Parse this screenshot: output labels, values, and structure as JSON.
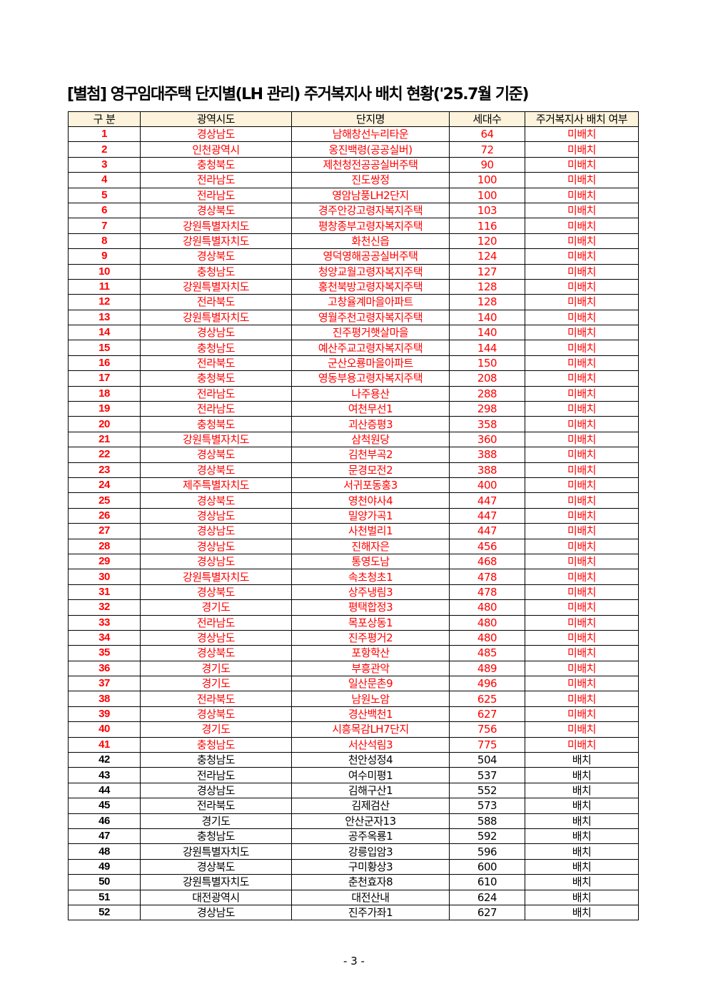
{
  "title": "[별첨] 영구임대주택 단지별(LH 관리) 주거복지사 배치 현황('25.7월 기준)",
  "colors": {
    "undeployed": "#ff0000",
    "deployed": "#000000",
    "header_bg": "#fdf3dc"
  },
  "table": {
    "headers": [
      "구 분",
      "광역시도",
      "단지명",
      "세대수",
      "주거복지사 배치 여부"
    ],
    "rows": [
      [
        "1",
        "경상남도",
        "남해창선누리타운",
        "64",
        "미배치"
      ],
      [
        "2",
        "인천광역시",
        "옹진백령(공공실버)",
        "72",
        "미배치"
      ],
      [
        "3",
        "충청북도",
        "제천청전공공실버주택",
        "90",
        "미배치"
      ],
      [
        "4",
        "전라남도",
        "진도쌍정",
        "100",
        "미배치"
      ],
      [
        "5",
        "전라남도",
        "영암남풍LH2단지",
        "100",
        "미배치"
      ],
      [
        "6",
        "경상북도",
        "경주안강고령자복지주택",
        "103",
        "미배치"
      ],
      [
        "7",
        "강원특별자치도",
        "평창종부고령자복지주택",
        "116",
        "미배치"
      ],
      [
        "8",
        "강원특별자치도",
        "화천신읍",
        "120",
        "미배치"
      ],
      [
        "9",
        "경상북도",
        "영덕영해공공실버주택",
        "124",
        "미배치"
      ],
      [
        "10",
        "충청남도",
        "청양교월고령자복지주택",
        "127",
        "미배치"
      ],
      [
        "11",
        "강원특별자치도",
        "홍천북방고령자복지주택",
        "128",
        "미배치"
      ],
      [
        "12",
        "전라북도",
        "고창율계마을아파트",
        "128",
        "미배치"
      ],
      [
        "13",
        "강원특별자치도",
        "영월주천고령자복지주택",
        "140",
        "미배치"
      ],
      [
        "14",
        "경상남도",
        "진주평거햇살마을",
        "140",
        "미배치"
      ],
      [
        "15",
        "충청남도",
        "예산주교고령자복지주택",
        "144",
        "미배치"
      ],
      [
        "16",
        "전라북도",
        "군산오룡마을아파트",
        "150",
        "미배치"
      ],
      [
        "17",
        "충청북도",
        "영동부용고령자복지주택",
        "208",
        "미배치"
      ],
      [
        "18",
        "전라남도",
        "나주용산",
        "288",
        "미배치"
      ],
      [
        "19",
        "전라남도",
        "여천무선1",
        "298",
        "미배치"
      ],
      [
        "20",
        "충청북도",
        "괴산증평3",
        "358",
        "미배치"
      ],
      [
        "21",
        "강원특별자치도",
        "삼척원당",
        "360",
        "미배치"
      ],
      [
        "22",
        "경상북도",
        "김천부곡2",
        "388",
        "미배치"
      ],
      [
        "23",
        "경상북도",
        "문경모전2",
        "388",
        "미배치"
      ],
      [
        "24",
        "제주특별자치도",
        "서귀포동홍3",
        "400",
        "미배치"
      ],
      [
        "25",
        "경상북도",
        "영천야사4",
        "447",
        "미배치"
      ],
      [
        "26",
        "경상남도",
        "밀양가곡1",
        "447",
        "미배치"
      ],
      [
        "27",
        "경상남도",
        "사천벌리1",
        "447",
        "미배치"
      ],
      [
        "28",
        "경상남도",
        "진해자은",
        "456",
        "미배치"
      ],
      [
        "29",
        "경상남도",
        "통영도남",
        "468",
        "미배치"
      ],
      [
        "30",
        "강원특별자치도",
        "속초청초1",
        "478",
        "미배치"
      ],
      [
        "31",
        "경상북도",
        "상주냉림3",
        "478",
        "미배치"
      ],
      [
        "32",
        "경기도",
        "평택합정3",
        "480",
        "미배치"
      ],
      [
        "33",
        "전라남도",
        "목포상동1",
        "480",
        "미배치"
      ],
      [
        "34",
        "경상남도",
        "진주평거2",
        "480",
        "미배치"
      ],
      [
        "35",
        "경상북도",
        "포항학산",
        "485",
        "미배치"
      ],
      [
        "36",
        "경기도",
        "부흥관악",
        "489",
        "미배치"
      ],
      [
        "37",
        "경기도",
        "일산문촌9",
        "496",
        "미배치"
      ],
      [
        "38",
        "전라북도",
        "남원노암",
        "625",
        "미배치"
      ],
      [
        "39",
        "경상북도",
        "경산백천1",
        "627",
        "미배치"
      ],
      [
        "40",
        "경기도",
        "시흥목감LH7단지",
        "756",
        "미배치"
      ],
      [
        "41",
        "충청남도",
        "서산석림3",
        "775",
        "미배치"
      ],
      [
        "42",
        "충청남도",
        "천안성정4",
        "504",
        "배치"
      ],
      [
        "43",
        "전라남도",
        "여수미평1",
        "537",
        "배치"
      ],
      [
        "44",
        "경상남도",
        "김해구산1",
        "552",
        "배치"
      ],
      [
        "45",
        "전라북도",
        "김제검산",
        "573",
        "배치"
      ],
      [
        "46",
        "경기도",
        "안산군자13",
        "588",
        "배치"
      ],
      [
        "47",
        "충청남도",
        "공주옥룡1",
        "592",
        "배치"
      ],
      [
        "48",
        "강원특별자치도",
        "강릉입암3",
        "596",
        "배치"
      ],
      [
        "49",
        "경상북도",
        "구미황상3",
        "600",
        "배치"
      ],
      [
        "50",
        "강원특별자치도",
        "춘천효자8",
        "610",
        "배치"
      ],
      [
        "51",
        "대전광역시",
        "대전산내",
        "624",
        "배치"
      ],
      [
        "52",
        "경상남도",
        "진주가좌1",
        "627",
        "배치"
      ]
    ]
  },
  "footer": {
    "page": "- 3 -"
  }
}
